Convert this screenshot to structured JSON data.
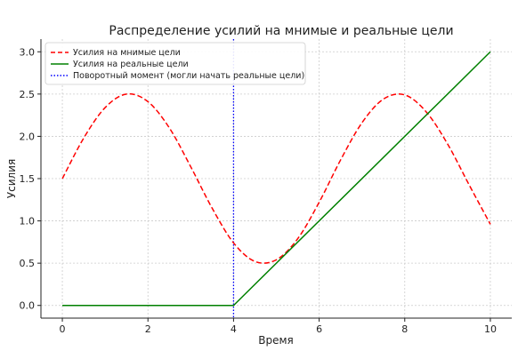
{
  "chart_data": {
    "type": "line",
    "title": "Распределение усилий на мнимые и реальные цели",
    "xlabel": "Время",
    "ylabel": "Усилия",
    "xlim": [
      -0.5,
      10.5
    ],
    "ylim": [
      -0.15,
      3.15
    ],
    "xticks": [
      0,
      2,
      4,
      6,
      8,
      10
    ],
    "xtick_labels": [
      "0",
      "2",
      "4",
      "6",
      "8",
      "10"
    ],
    "yticks": [
      0.0,
      0.5,
      1.0,
      1.5,
      2.0,
      2.5,
      3.0
    ],
    "ytick_labels": [
      "0.0",
      "0.5",
      "1.0",
      "1.5",
      "2.0",
      "2.5",
      "3.0"
    ],
    "grid": true,
    "legend_position": "top-left",
    "series": [
      {
        "name": "Усилия на мнимые цели",
        "color": "#ff0000",
        "style": "dashed",
        "x": [
          0,
          0.5,
          1.0,
          1.5,
          2.0,
          2.5,
          3.0,
          3.5,
          4.0,
          4.5,
          5.0,
          5.5,
          6.0,
          6.5,
          7.0,
          7.5,
          8.0,
          8.5,
          9.0,
          9.5,
          10.0
        ],
        "y": [
          1.5,
          1.98,
          2.34,
          2.5,
          2.41,
          2.1,
          1.64,
          1.15,
          0.74,
          0.52,
          0.54,
          0.79,
          1.22,
          1.72,
          2.16,
          2.44,
          2.49,
          2.29,
          1.91,
          1.43,
          0.96
        ]
      },
      {
        "name": "Усилия на реальные цели",
        "color": "#008000",
        "style": "solid",
        "x": [
          0,
          4,
          10
        ],
        "y": [
          0.0,
          0.0,
          3.0
        ]
      }
    ],
    "vlines": [
      {
        "name": "Поворотный момент (могли начать реальные цели)",
        "x": 4,
        "color": "#0000ff",
        "style": "dotted"
      }
    ]
  }
}
